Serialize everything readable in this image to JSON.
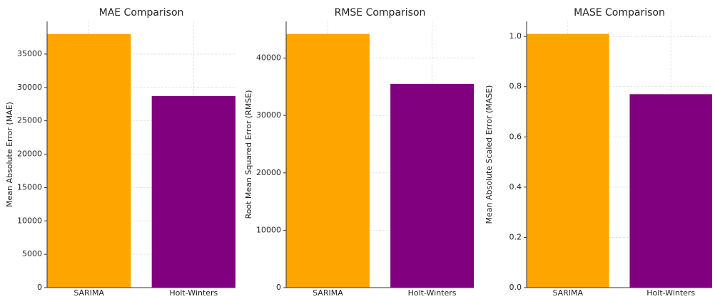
{
  "chart_data": [
    {
      "type": "bar",
      "title": "MAE Comparison",
      "ylabel": "Mean Absolute Error (MAE)",
      "categories": [
        "SARIMA",
        "Holt-Winters"
      ],
      "values": [
        38000,
        28700
      ],
      "colors": [
        "#ffa500",
        "#800080"
      ],
      "ylim": [
        0,
        39900
      ],
      "yticks": [
        0,
        5000,
        10000,
        15000,
        20000,
        25000,
        30000,
        35000
      ],
      "grid": true
    },
    {
      "type": "bar",
      "title": "RMSE Comparison",
      "ylabel": "Root Mean Squared Error (RMSE)",
      "categories": [
        "SARIMA",
        "Holt-Winters"
      ],
      "values": [
        44200,
        35500
      ],
      "colors": [
        "#ffa500",
        "#800080"
      ],
      "ylim": [
        0,
        46400
      ],
      "yticks": [
        0,
        10000,
        20000,
        30000,
        40000
      ],
      "grid": true
    },
    {
      "type": "bar",
      "title": "MASE Comparison",
      "ylabel": "Mean Absolute Scaled Error (MASE)",
      "categories": [
        "SARIMA",
        "Holt-Winters"
      ],
      "values": [
        1.01,
        0.77
      ],
      "colors": [
        "#ffa500",
        "#800080"
      ],
      "ylim": [
        0,
        1.06
      ],
      "yticks": [
        {
          "value": 0,
          "label": "0.0"
        },
        0.2,
        0.4,
        0.6,
        0.8,
        {
          "value": 1,
          "label": "1.0"
        }
      ],
      "grid": true
    }
  ]
}
